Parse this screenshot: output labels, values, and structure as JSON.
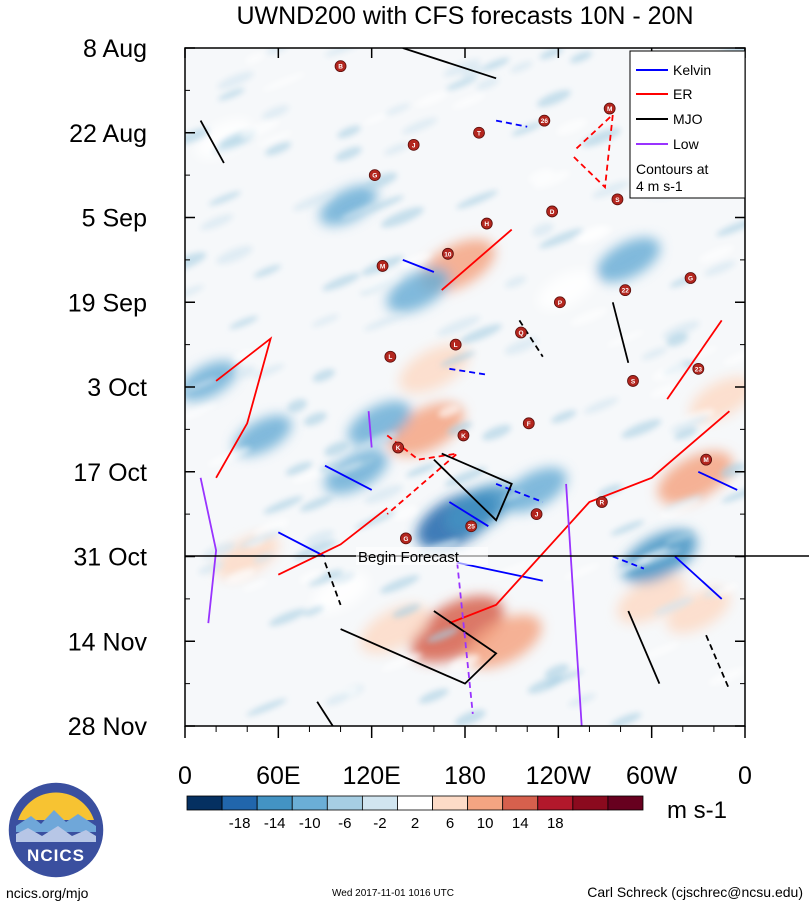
{
  "title": "UWND200 with CFS forecasts  10N - 20N",
  "footer": {
    "url": "ncics.org/mjo",
    "timestamp": "Wed 2017-11-01 1016 UTC",
    "author": "Carl Schreck (cjschrec@ncsu.edu)"
  },
  "logo": {
    "text": "NCICS"
  },
  "legend": {
    "items": [
      {
        "label": "Kelvin",
        "color": "#0000ff"
      },
      {
        "label": "ER",
        "color": "#ff0000"
      },
      {
        "label": "MJO",
        "color": "#000000"
      },
      {
        "label": "Low",
        "color": "#9933ff"
      }
    ],
    "note_line1": "Contours at",
    "note_line2": "4 m s-1"
  },
  "forecast_label": "Begin Forecast",
  "colorbar": {
    "units": "m s-1",
    "tick_labels": [
      "-18",
      "-14",
      "-10",
      "-6",
      "-2",
      "2",
      "6",
      "10",
      "14",
      "18"
    ],
    "colors": [
      "#053061",
      "#2166ac",
      "#4393c3",
      "#6baed6",
      "#a6cee3",
      "#d1e5f0",
      "#ffffff",
      "#fddbc7",
      "#f4a582",
      "#d6604d",
      "#b2182b",
      "#8b0a1e",
      "#67001f"
    ]
  },
  "chart_data": {
    "type": "heatmap",
    "title": "UWND200 with CFS forecasts  10N - 20N",
    "x_tick_labels": [
      "0",
      "60E",
      "120E",
      "180",
      "120W",
      "60W",
      "0"
    ],
    "x_ticks_deg": [
      0,
      60,
      120,
      180,
      240,
      300,
      360
    ],
    "xlim": [
      0,
      360
    ],
    "y_tick_labels": [
      "8 Aug",
      "22 Aug",
      "5 Sep",
      "19 Sep",
      "3 Oct",
      "17 Oct",
      "31 Oct",
      "14 Nov",
      "28 Nov"
    ],
    "y_ticks_day": [
      0,
      14,
      28,
      42,
      56,
      70,
      84,
      98,
      112
    ],
    "ylim_day": [
      0,
      112
    ],
    "forecast_start_day": 84,
    "contour_interval": 4,
    "anomaly_blobs": [
      {
        "lon": 175,
        "day": 96,
        "value": 18
      },
      {
        "lon": 135,
        "day": 96,
        "value": 10
      },
      {
        "lon": 205,
        "day": 98,
        "value": 12
      },
      {
        "lon": 160,
        "day": 53,
        "value": 10
      },
      {
        "lon": 155,
        "day": 63,
        "value": 12
      },
      {
        "lon": 175,
        "day": 36,
        "value": 12
      },
      {
        "lon": 328,
        "day": 71,
        "value": 12
      },
      {
        "lon": 300,
        "day": 91,
        "value": 10
      },
      {
        "lon": 345,
        "day": 58,
        "value": 8
      },
      {
        "lon": 245,
        "day": 40,
        "value": 6
      },
      {
        "lon": 25,
        "day": 15,
        "value": 6
      },
      {
        "lon": 40,
        "day": 84,
        "value": 8
      },
      {
        "lon": 100,
        "day": 90,
        "value": 6
      },
      {
        "lon": 330,
        "day": 93,
        "value": 8
      },
      {
        "lon": 175,
        "day": 78,
        "value": -14
      },
      {
        "lon": 190,
        "day": 76,
        "value": -10
      },
      {
        "lon": 305,
        "day": 84,
        "value": -12
      },
      {
        "lon": 110,
        "day": 70,
        "value": -8
      },
      {
        "lon": 125,
        "day": 62,
        "value": -8
      },
      {
        "lon": 50,
        "day": 64,
        "value": -6
      },
      {
        "lon": 150,
        "day": 40,
        "value": -8
      },
      {
        "lon": 225,
        "day": 73,
        "value": -8
      },
      {
        "lon": 285,
        "day": 35,
        "value": -8
      },
      {
        "lon": 105,
        "day": 26,
        "value": -6
      },
      {
        "lon": 15,
        "day": 55,
        "value": -6
      },
      {
        "lon": 315,
        "day": 20,
        "value": -6
      }
    ],
    "series": [
      {
        "name": "Kelvin",
        "color": "#0000ff",
        "lines": [
          [
            [
              140,
              35
            ],
            [
              160,
              37
            ]
          ],
          [
            [
              170,
              53
            ],
            [
              195,
              54
            ]
          ],
          [
            [
              90,
              69
            ],
            [
              120,
              73
            ]
          ],
          [
            [
              170,
              75
            ],
            [
              195,
              79
            ]
          ],
          [
            [
              200,
              72
            ],
            [
              230,
              75
            ]
          ],
          [
            [
              60,
              80
            ],
            [
              90,
              84
            ]
          ],
          [
            [
              175,
              85
            ],
            [
              230,
              88
            ]
          ],
          [
            [
              275,
              84
            ],
            [
              295,
              86
            ]
          ],
          [
            [
              315,
              84
            ],
            [
              345,
              91
            ]
          ],
          [
            [
              330,
              70
            ],
            [
              355,
              73
            ]
          ],
          [
            [
              200,
              12
            ],
            [
              220,
              13
            ]
          ]
        ]
      },
      {
        "name": "ER",
        "color": "#ff0000",
        "lines": [
          [
            [
              20,
              71
            ],
            [
              40,
              62
            ],
            [
              55,
              48
            ],
            [
              20,
              55
            ]
          ],
          [
            [
              130,
              64
            ],
            [
              150,
              68
            ],
            [
              175,
              67
            ],
            [
              130,
              77
            ]
          ],
          [
            [
              170,
              95
            ],
            [
              200,
              92
            ],
            [
              260,
              75
            ],
            [
              300,
              71
            ],
            [
              350,
              60
            ]
          ],
          [
            [
              60,
              87
            ],
            [
              100,
              82
            ],
            [
              130,
              76
            ]
          ],
          [
            [
              250,
              18
            ],
            [
              270,
              23
            ],
            [
              275,
              11
            ],
            [
              250,
              17
            ]
          ],
          [
            [
              165,
              40
            ],
            [
              210,
              30
            ]
          ],
          [
            [
              310,
              58
            ],
            [
              345,
              45
            ]
          ]
        ]
      },
      {
        "name": "MJO",
        "color": "#000000",
        "lines": [
          [
            [
              10,
              12
            ],
            [
              25,
              19
            ]
          ],
          [
            [
              90,
              85
            ],
            [
              100,
              92
            ]
          ],
          [
            [
              100,
              96
            ],
            [
              180,
              105
            ],
            [
              200,
              100
            ],
            [
              160,
              93
            ]
          ],
          [
            [
              165,
              67
            ],
            [
              210,
              72
            ],
            [
              200,
              78
            ],
            [
              160,
              68
            ]
          ],
          [
            [
              215,
              45
            ],
            [
              230,
              51
            ]
          ],
          [
            [
              275,
              42
            ],
            [
              285,
              52
            ]
          ],
          [
            [
              285,
              93
            ],
            [
              305,
              105
            ]
          ],
          [
            [
              335,
              97
            ],
            [
              350,
              106
            ]
          ],
          [
            [
              85,
              108
            ],
            [
              100,
              114
            ]
          ],
          [
            [
              140,
              0
            ],
            [
              200,
              5
            ]
          ]
        ]
      },
      {
        "name": "Low",
        "color": "#9933ff",
        "lines": [
          [
            [
              10,
              71
            ],
            [
              20,
              83
            ],
            [
              15,
              95
            ]
          ],
          [
            [
              175,
              85
            ],
            [
              185,
              110
            ]
          ],
          [
            [
              245,
              72
            ],
            [
              255,
              112
            ]
          ],
          [
            [
              118,
              60
            ],
            [
              120,
              66
            ]
          ]
        ]
      }
    ],
    "storm_labels": [
      "B",
      "J",
      "H",
      "P",
      "S",
      "M",
      "G",
      "T",
      "D",
      "22",
      "23",
      "K",
      "25",
      "26",
      "S",
      "G",
      "L",
      "K",
      "J",
      "M",
      "N",
      "M",
      "L",
      "F",
      "R",
      "N",
      "G",
      "10",
      "Q"
    ]
  }
}
